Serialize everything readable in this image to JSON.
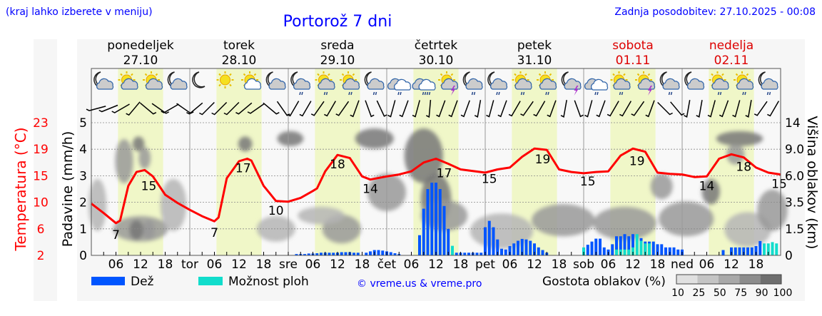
{
  "header": {
    "hint": "(kraj lahko izberete v meniju)",
    "title": "Portorož 7 dni",
    "updated": "Zadnja posodobitev: 27.10.2025 - 00:08"
  },
  "colors": {
    "text_blue": "#0000ff",
    "temp": "#ff0000",
    "rain": "#0055ff",
    "convective": "#11ddcc",
    "daylight": "#f0f7c8",
    "weekend": "#dd0000"
  },
  "days": [
    {
      "name": "ponedeljek",
      "date": "27.10",
      "abbr": "",
      "weekend": false,
      "icons": [
        "moon-cloud-icon",
        "sun-cloud-icon",
        "sun-cloud-icon",
        "moon-cloud-icon"
      ]
    },
    {
      "name": "torek",
      "date": "28.10",
      "abbr": "tor",
      "weekend": false,
      "icons": [
        "moon-icon",
        "sun-icon",
        "sun-small-cloud-icon",
        "moon-cloud-icon"
      ]
    },
    {
      "name": "sreda",
      "date": "29.10",
      "abbr": "sre",
      "weekend": false,
      "icons": [
        "moon-cloud-rain-icon",
        "sun-cloud-rain-icon",
        "sun-cloud-rain-icon",
        "moon-cloud-rain-icon"
      ]
    },
    {
      "name": "četrtek",
      "date": "30.10",
      "abbr": "čet",
      "weekend": false,
      "icons": [
        "cloud-rain-icon",
        "cloud-heavy-rain-icon",
        "sun-thunder-icon",
        "moon-cloud-rain-icon"
      ]
    },
    {
      "name": "petek",
      "date": "31.10",
      "abbr": "pet",
      "weekend": false,
      "icons": [
        "moon-cloud-rain-icon",
        "sun-cloud-rain-icon",
        "sun-cloud-rain-icon",
        "moon-thunder-icon"
      ]
    },
    {
      "name": "sobota",
      "date": "01.11",
      "abbr": "sob",
      "weekend": true,
      "icons": [
        "cloud-rain-icon",
        "sun-cloud-rain-icon",
        "sun-thunder-icon",
        "moon-cloud-rain-icon"
      ]
    },
    {
      "name": "nedelja",
      "date": "02.11",
      "abbr": "ned",
      "weekend": true,
      "icons": [
        "moon-cloud-icon",
        "sun-cloud-rain-icon",
        "sun-cloud-rain-icon",
        "moon-cloud-rain-icon"
      ]
    }
  ],
  "legend": {
    "rain": "Dež",
    "convective": "Možnost ploh",
    "credit": "© vreme.us & vreme.pro",
    "cloud_density": "Gostota oblakov (%)",
    "density_ticks": [
      "10",
      "25",
      "50",
      "75",
      "90",
      "100"
    ]
  },
  "chart_data": {
    "type": "combo",
    "title": "Portorož 7 dni",
    "x_unit": "hours since Mon 27.10 00:00",
    "x_range": [
      0,
      168
    ],
    "x_tick_labels": [
      "06",
      "12",
      "18"
    ],
    "daylight_hours": [
      6.5,
      17.5
    ],
    "y_left_temp": {
      "label": "Temperatura (°C)",
      "ticks": [
        "23",
        "19",
        "15",
        "10",
        "6",
        "2"
      ],
      "range": [
        2,
        23
      ]
    },
    "y_left_precip": {
      "label": "Padavine (mm/h)",
      "ticks": [
        "5",
        "4",
        "3",
        "2",
        "1",
        "0"
      ],
      "range": [
        0,
        5
      ]
    },
    "y_right_cloud": {
      "label": "Višina oblakov (km)",
      "ticks": [
        "14",
        "9.0",
        "6.0",
        "3.5",
        "1.5",
        "0"
      ]
    },
    "grid": true,
    "temperature": {
      "hours": [
        0,
        3,
        6,
        7,
        9,
        11,
        13,
        15,
        18,
        21,
        24,
        27,
        30,
        31,
        33,
        36,
        38,
        39,
        42,
        45,
        48,
        51,
        54,
        55,
        57,
        60,
        63,
        66,
        68,
        72,
        75,
        78,
        81,
        84,
        87,
        90,
        96,
        99,
        102,
        105,
        108,
        111,
        114,
        117,
        120,
        123,
        126,
        129,
        132,
        135,
        138,
        141,
        144,
        147,
        150,
        153,
        156,
        159,
        162,
        165,
        168
      ],
      "values": [
        10.2,
        8.7,
        7.1,
        7.5,
        13,
        15.2,
        15.5,
        14.5,
        11.6,
        10.3,
        9.2,
        8.2,
        7.4,
        8,
        14.2,
        16.9,
        17.3,
        17,
        13,
        10.6,
        10.5,
        11.1,
        12.2,
        12.6,
        15.3,
        17.9,
        17.4,
        14.5,
        14,
        14.5,
        14.8,
        15.3,
        16.7,
        17.3,
        16.5,
        15.6,
        15.1,
        15.6,
        15.9,
        17.6,
        18.9,
        18.7,
        15.6,
        15.2,
        15,
        15.2,
        15.3,
        17.8,
        18.9,
        18.4,
        15.1,
        14.9,
        14.8,
        14.4,
        14.5,
        17.3,
        18,
        17.5,
        15.9,
        15.1,
        14.8
      ]
    },
    "temp_labels": [
      {
        "h": 6,
        "v": "7",
        "pos": "below"
      },
      {
        "h": 14,
        "v": "15",
        "pos": "below"
      },
      {
        "h": 30,
        "v": "7",
        "pos": "below"
      },
      {
        "h": 37,
        "v": "17",
        "pos": "below"
      },
      {
        "h": 45,
        "v": "10",
        "pos": "below"
      },
      {
        "h": 60,
        "v": "18",
        "pos": "below"
      },
      {
        "h": 68,
        "v": "14",
        "pos": "below"
      },
      {
        "h": 86,
        "v": "17",
        "pos": "below"
      },
      {
        "h": 97,
        "v": "15",
        "pos": "below"
      },
      {
        "h": 110,
        "v": "19",
        "pos": "below"
      },
      {
        "h": 121,
        "v": "15",
        "pos": "below"
      },
      {
        "h": 133,
        "v": "19",
        "pos": "below"
      },
      {
        "h": 150,
        "v": "14",
        "pos": "below"
      },
      {
        "h": 159,
        "v": "18",
        "pos": "below"
      },
      {
        "h": 168,
        "v": "15",
        "pos": "below"
      }
    ],
    "precipitation": [
      [
        50,
        0.05,
        0
      ],
      [
        51,
        0.05,
        0
      ],
      [
        52,
        0.05,
        0
      ],
      [
        53,
        0.07,
        0
      ],
      [
        54,
        0.07,
        0
      ],
      [
        55,
        0.08,
        0
      ],
      [
        56,
        0.1,
        0
      ],
      [
        57,
        0.1,
        0
      ],
      [
        58,
        0.1,
        0
      ],
      [
        59,
        0.1,
        0
      ],
      [
        60,
        0.1,
        0
      ],
      [
        61,
        0.12,
        0
      ],
      [
        62,
        0.12,
        0
      ],
      [
        63,
        0.12,
        0
      ],
      [
        64,
        0.1,
        0
      ],
      [
        65,
        0.1,
        0
      ],
      [
        67,
        0.1,
        0
      ],
      [
        68,
        0.15,
        0
      ],
      [
        69,
        0.2,
        0
      ],
      [
        70,
        0.2,
        0
      ],
      [
        71,
        0.18,
        0
      ],
      [
        72,
        0.15,
        0
      ],
      [
        73,
        0.12,
        0
      ],
      [
        74,
        0.08,
        0
      ],
      [
        75,
        0.05,
        0
      ],
      [
        80,
        0.76,
        0
      ],
      [
        81,
        1.76,
        0
      ],
      [
        82,
        2.5,
        0
      ],
      [
        83,
        2.74,
        0
      ],
      [
        84,
        2.74,
        0
      ],
      [
        85,
        2.5,
        0
      ],
      [
        86,
        1.86,
        0
      ],
      [
        87,
        1.0,
        0
      ],
      [
        88,
        0,
        0.36
      ],
      [
        89,
        0.1,
        0
      ],
      [
        90,
        0.1,
        0
      ],
      [
        91,
        0.1,
        0
      ],
      [
        92,
        0.1,
        0
      ],
      [
        93,
        0.1,
        0
      ],
      [
        94,
        0.1,
        0
      ],
      [
        95,
        0.1,
        0
      ],
      [
        96,
        1.06,
        0
      ],
      [
        97,
        1.3,
        0
      ],
      [
        98,
        1.06,
        0
      ],
      [
        99,
        0.6,
        0
      ],
      [
        100,
        0.25,
        0
      ],
      [
        101,
        0.22,
        0
      ],
      [
        102,
        0.35,
        0
      ],
      [
        103,
        0.45,
        0
      ],
      [
        104,
        0.55,
        0
      ],
      [
        105,
        0.62,
        0
      ],
      [
        106,
        0.6,
        0
      ],
      [
        107,
        0.55,
        0
      ],
      [
        108,
        0.45,
        0
      ],
      [
        109,
        0.3,
        0
      ],
      [
        110,
        0.2,
        0
      ],
      [
        111,
        0.1,
        0
      ],
      [
        120,
        0,
        0.3
      ],
      [
        121,
        0.4,
        0
      ],
      [
        122,
        0.52,
        0
      ],
      [
        123,
        0.63,
        0
      ],
      [
        124,
        0.63,
        0
      ],
      [
        125,
        0.3,
        0
      ],
      [
        126,
        0.22,
        0
      ],
      [
        127,
        0.42,
        0
      ],
      [
        128,
        0.72,
        0.22
      ],
      [
        129,
        0.72,
        0.22
      ],
      [
        130,
        0.8,
        0.22
      ],
      [
        131,
        0.72,
        0.22
      ],
      [
        132,
        0.8,
        0.3
      ],
      [
        133,
        0,
        0.8
      ],
      [
        134,
        0.65,
        0.55
      ],
      [
        135,
        0.52,
        0.45
      ],
      [
        136,
        0.52,
        0.45
      ],
      [
        137,
        0.52,
        0
      ],
      [
        138,
        0.42,
        0
      ],
      [
        139,
        0.42,
        0
      ],
      [
        140,
        0.3,
        0
      ],
      [
        141,
        0.3,
        0
      ],
      [
        142,
        0.3,
        0
      ],
      [
        143,
        0.22,
        0
      ],
      [
        144,
        0.22,
        0
      ],
      [
        154,
        0.2,
        0
      ],
      [
        156,
        0.3,
        0
      ],
      [
        157,
        0.3,
        0
      ],
      [
        158,
        0.3,
        0
      ],
      [
        159,
        0.3,
        0
      ],
      [
        160,
        0.3,
        0
      ],
      [
        161,
        0.3,
        0
      ],
      [
        162,
        0.35,
        0
      ],
      [
        163,
        0.54,
        0
      ],
      [
        164,
        0,
        0.45
      ],
      [
        165,
        0,
        0.45
      ],
      [
        166,
        0,
        0.5
      ],
      [
        167,
        0,
        0.45
      ]
    ],
    "clouds": [
      [
        1.5,
        3.5,
        3,
        4,
        40
      ],
      [
        8,
        8,
        3,
        5,
        50
      ],
      [
        11.5,
        10,
        1.5,
        2,
        75
      ],
      [
        13,
        8,
        1.5,
        2,
        55
      ],
      [
        12,
        1.6,
        12,
        1.4,
        50
      ],
      [
        11,
        1.5,
        2,
        1,
        75
      ],
      [
        14,
        1.5,
        1.5,
        1,
        70
      ],
      [
        20,
        3.5,
        5,
        4,
        40
      ],
      [
        37.5,
        10,
        2,
        2,
        75
      ],
      [
        48.5,
        11,
        5,
        2,
        80
      ],
      [
        45,
        1.6,
        8,
        1.4,
        35
      ],
      [
        61,
        1.6,
        8,
        1.6,
        50
      ],
      [
        56,
        2.5,
        10,
        1,
        30
      ],
      [
        69,
        11,
        8,
        3,
        85
      ],
      [
        72,
        4.5,
        8,
        3,
        65
      ],
      [
        81,
        9,
        8,
        7,
        85
      ],
      [
        84,
        4,
        6,
        4,
        75
      ],
      [
        86,
        2.5,
        10,
        2,
        55
      ],
      [
        100,
        1.5,
        14,
        2,
        45
      ],
      [
        115,
        2.2,
        14,
        2,
        50
      ],
      [
        130,
        2,
        14,
        2,
        50
      ],
      [
        139,
        5,
        4,
        2,
        70
      ],
      [
        145,
        2.3,
        12,
        2.2,
        50
      ],
      [
        151,
        4.5,
        3,
        2,
        80
      ],
      [
        160,
        1.6,
        10,
        2,
        40
      ],
      [
        158,
        11,
        10,
        2,
        75
      ],
      [
        157,
        8.5,
        3,
        2,
        55
      ],
      [
        166,
        3,
        6,
        3,
        50
      ]
    ],
    "wind_barb_angles_3h": [
      -75,
      -68,
      -60,
      -40,
      50,
      55,
      -60,
      55,
      -50,
      -45,
      -45,
      -45,
      -50,
      -55,
      50,
      35,
      -30,
      -30,
      -35,
      -30,
      -35,
      -20,
      20,
      25,
      -15,
      -20,
      -15,
      -5,
      -20,
      -20,
      -20,
      -10,
      -15,
      -20,
      -30,
      -35,
      -30,
      -20,
      -10,
      20,
      -15,
      -20,
      -30,
      -30,
      -35,
      -20,
      45,
      40,
      -10,
      -10,
      -15,
      -20,
      -15,
      -10,
      -35,
      -30
    ]
  }
}
